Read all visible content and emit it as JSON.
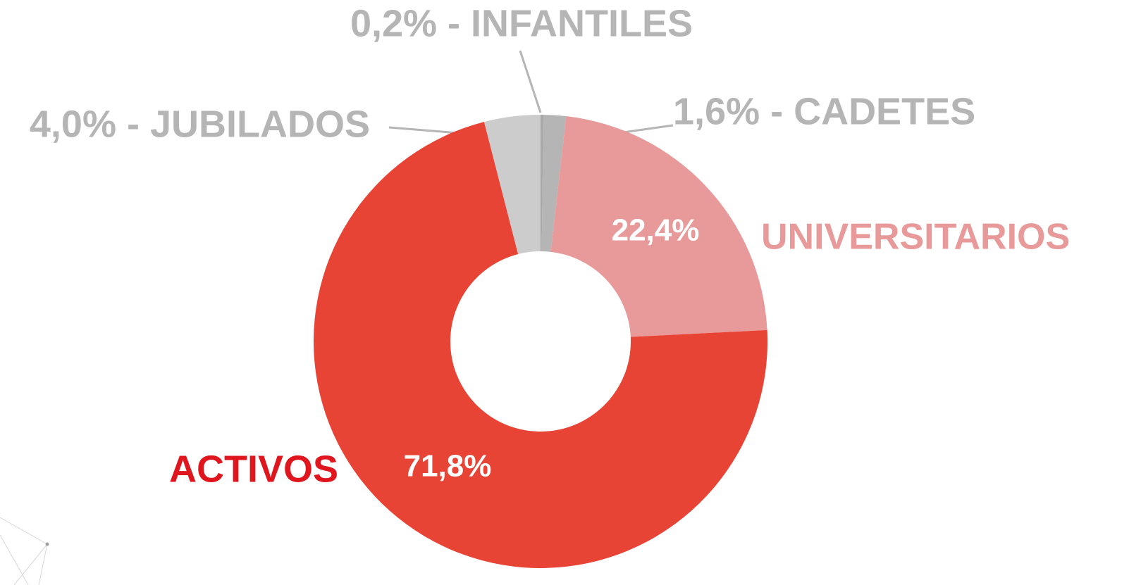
{
  "chart_data": {
    "type": "donut",
    "categories": [
      "0,2% - INFANTILES",
      "1,6% - CADETES",
      "UNIVERSITARIOS",
      "ACTIVOS",
      "4,0% - JUBILADOS"
    ],
    "values": [
      0.2,
      1.6,
      22.4,
      71.8,
      4.0
    ],
    "value_labels": [
      null,
      null,
      "22,4%",
      "71,8%",
      null
    ],
    "colors": [
      "#a8a8a8",
      "#b5b5b5",
      "#e89a9a",
      "#e84436",
      "#cccccc"
    ],
    "label_colors": [
      "#b5b5b5",
      "#b5b5b5",
      "#e89a9a",
      "#e0161e",
      "#b5b5b5"
    ]
  }
}
